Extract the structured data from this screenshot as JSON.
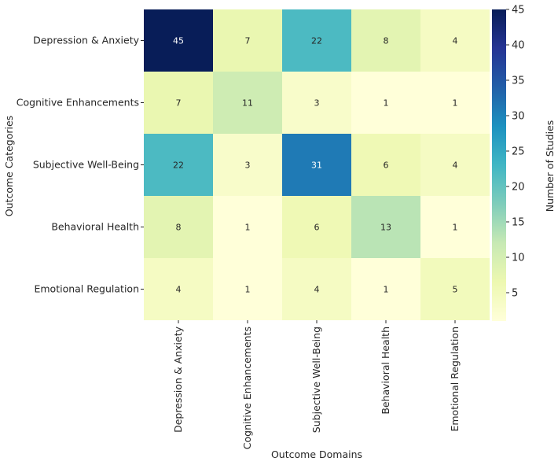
{
  "chart_data": {
    "type": "heatmap",
    "title": "",
    "xlabel": "Outcome Domains",
    "ylabel": "Outcome Categories",
    "x_categories": [
      "Depression & Anxiety",
      "Cognitive Enhancements",
      "Subjective Well-Being",
      "Behavioral Health",
      "Emotional Regulation"
    ],
    "y_categories": [
      "Depression & Anxiety",
      "Cognitive Enhancements",
      "Subjective Well-Being",
      "Behavioral Health",
      "Emotional Regulation"
    ],
    "values": [
      [
        45,
        7,
        22,
        8,
        4
      ],
      [
        7,
        11,
        3,
        1,
        1
      ],
      [
        22,
        3,
        31,
        6,
        4
      ],
      [
        8,
        1,
        6,
        13,
        1
      ],
      [
        4,
        1,
        4,
        1,
        5
      ]
    ],
    "annotated": true,
    "colormap": "YlGnBu",
    "colorbar": {
      "label": "Number of Studies",
      "min": 1,
      "max": 45,
      "ticks": [
        5,
        10,
        15,
        20,
        25,
        30,
        35,
        40,
        45
      ]
    }
  }
}
